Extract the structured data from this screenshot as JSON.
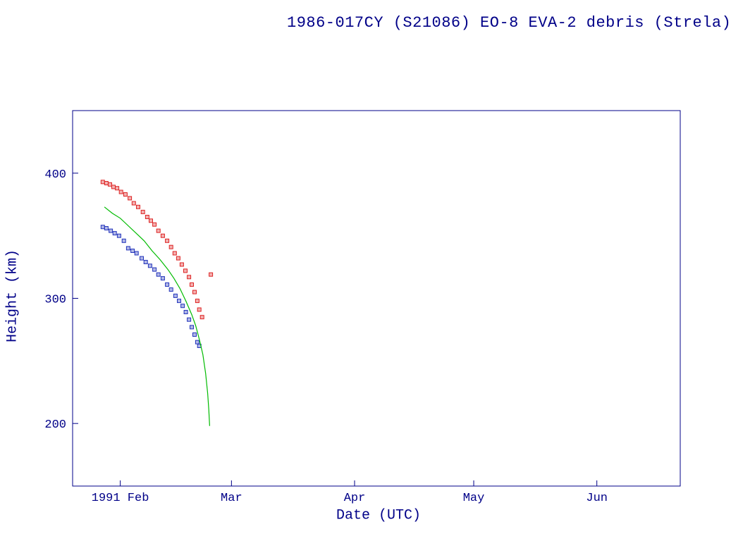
{
  "title": "1986-017CY (S21086) EO-8 EVA-2 debris (Strela)",
  "colors": {
    "background": "#ffffff",
    "frame": "#000088",
    "text": "#000088",
    "apogee": "#dd2222",
    "perigee": "#2233bb",
    "prediction": "#00bb00"
  },
  "chart_data": {
    "type": "scatter",
    "title": "1986-017CY (S21086) EO-8 EVA-2 debris (Strela)",
    "xlabel": "Date (UTC)",
    "ylabel": "Height (km)",
    "grid": false,
    "legend": null,
    "x_axis": {
      "unit": "days since 1991 Jan 20",
      "lim": [
        0,
        153
      ],
      "ticks": [
        {
          "day": 12,
          "label": "1991 Feb"
        },
        {
          "day": 40,
          "label": "Mar"
        },
        {
          "day": 71,
          "label": "Apr"
        },
        {
          "day": 101,
          "label": "May"
        },
        {
          "day": 132,
          "label": "Jun"
        }
      ]
    },
    "y_axis": {
      "unit": "km",
      "lim": [
        150,
        450
      ],
      "ticks": [
        200,
        300,
        400
      ]
    },
    "series": [
      {
        "name": "apogee-height",
        "kind": "scatter",
        "marker": "square",
        "color": "#dd2222",
        "points": [
          [
            7.6,
            393
          ],
          [
            8.5,
            392
          ],
          [
            9.4,
            391
          ],
          [
            10.3,
            389
          ],
          [
            11.2,
            388
          ],
          [
            12.2,
            385
          ],
          [
            13.3,
            383
          ],
          [
            14.4,
            380
          ],
          [
            15.4,
            376
          ],
          [
            16.5,
            373
          ],
          [
            17.7,
            369
          ],
          [
            18.8,
            365
          ],
          [
            19.7,
            362
          ],
          [
            20.6,
            359
          ],
          [
            21.6,
            354
          ],
          [
            22.7,
            350
          ],
          [
            23.8,
            346
          ],
          [
            24.8,
            341
          ],
          [
            25.7,
            336
          ],
          [
            26.6,
            332
          ],
          [
            27.5,
            327
          ],
          [
            28.4,
            322
          ],
          [
            29.3,
            317
          ],
          [
            30.0,
            311
          ],
          [
            30.7,
            305
          ],
          [
            31.4,
            298
          ],
          [
            31.9,
            291
          ],
          [
            32.6,
            285
          ],
          [
            34.8,
            319
          ]
        ]
      },
      {
        "name": "perigee-height",
        "kind": "scatter",
        "marker": "square",
        "color": "#2233bb",
        "points": [
          [
            7.6,
            357
          ],
          [
            8.5,
            356
          ],
          [
            9.6,
            354
          ],
          [
            10.6,
            352
          ],
          [
            11.7,
            350
          ],
          [
            12.9,
            346
          ],
          [
            14.0,
            340
          ],
          [
            15.1,
            338
          ],
          [
            16.1,
            336
          ],
          [
            17.4,
            332
          ],
          [
            18.4,
            329
          ],
          [
            19.5,
            326
          ],
          [
            20.6,
            323
          ],
          [
            21.6,
            319
          ],
          [
            22.7,
            316
          ],
          [
            23.8,
            311
          ],
          [
            24.8,
            307
          ],
          [
            25.9,
            302
          ],
          [
            26.8,
            298
          ],
          [
            27.7,
            294
          ],
          [
            28.5,
            289
          ],
          [
            29.3,
            283
          ],
          [
            30.0,
            277
          ],
          [
            30.7,
            271
          ],
          [
            31.4,
            265
          ],
          [
            31.9,
            262
          ]
        ]
      },
      {
        "name": "predicted-decay",
        "kind": "line",
        "color": "#00bb00",
        "points": [
          [
            8.0,
            373
          ],
          [
            10.0,
            368
          ],
          [
            12.0,
            364
          ],
          [
            14.0,
            358
          ],
          [
            16.0,
            352
          ],
          [
            18.0,
            346
          ],
          [
            20.0,
            338
          ],
          [
            22.0,
            331
          ],
          [
            24.0,
            323
          ],
          [
            25.5,
            316
          ],
          [
            27.0,
            308
          ],
          [
            28.5,
            298
          ],
          [
            30.0,
            287
          ],
          [
            31.0,
            278
          ],
          [
            32.0,
            266
          ],
          [
            32.8,
            255
          ],
          [
            33.5,
            240
          ],
          [
            34.0,
            224
          ],
          [
            34.3,
            211
          ],
          [
            34.5,
            198
          ]
        ]
      }
    ]
  }
}
